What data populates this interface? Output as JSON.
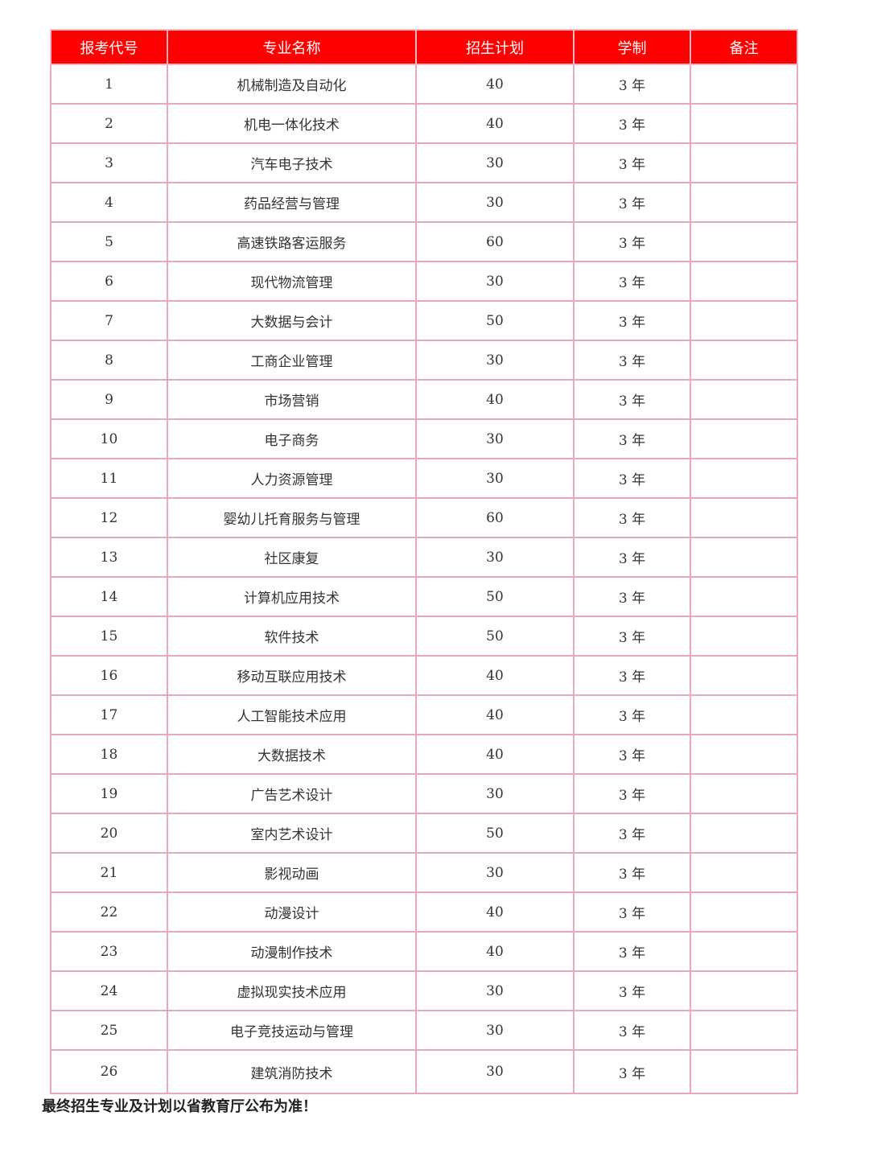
{
  "headers": [
    "报考代号",
    "专业名称",
    "招生计划",
    "学制",
    "备注"
  ],
  "rows": [
    [
      "1",
      "机械制造及自动化",
      "40",
      "3 年",
      ""
    ],
    [
      "2",
      "机电一体化技术",
      "40",
      "3 年",
      ""
    ],
    [
      "3",
      "汽车电子技术",
      "30",
      "3 年",
      ""
    ],
    [
      "4",
      "药品经营与管理",
      "30",
      "3 年",
      ""
    ],
    [
      "5",
      "高速铁路客运服务",
      "60",
      "3 年",
      ""
    ],
    [
      "6",
      "现代物流管理",
      "30",
      "3 年",
      ""
    ],
    [
      "7",
      "大数据与会计",
      "50",
      "3 年",
      ""
    ],
    [
      "8",
      "工商企业管理",
      "30",
      "3 年",
      ""
    ],
    [
      "9",
      "市场营销",
      "40",
      "3 年",
      ""
    ],
    [
      "10",
      "电子商务",
      "30",
      "3 年",
      ""
    ],
    [
      "11",
      "人力资源管理",
      "30",
      "3 年",
      ""
    ],
    [
      "12",
      "婴幼儿托育服务与管理",
      "60",
      "3 年",
      ""
    ],
    [
      "13",
      "社区康复",
      "30",
      "3 年",
      ""
    ],
    [
      "14",
      "计算机应用技术",
      "50",
      "3 年",
      ""
    ],
    [
      "15",
      "软件技术",
      "50",
      "3 年",
      ""
    ],
    [
      "16",
      "移动互联应用技术",
      "40",
      "3 年",
      ""
    ],
    [
      "17",
      "人工智能技术应用",
      "40",
      "3 年",
      ""
    ],
    [
      "18",
      "大数据技术",
      "40",
      "3 年",
      ""
    ],
    [
      "19",
      "广告艺术设计",
      "30",
      "3 年",
      ""
    ],
    [
      "20",
      "室内艺术设计",
      "50",
      "3 年",
      ""
    ],
    [
      "21",
      "影视动画",
      "30",
      "3 年",
      ""
    ],
    [
      "22",
      "动漫设计",
      "40",
      "3 年",
      ""
    ],
    [
      "23",
      "动漫制作技术",
      "40",
      "3 年",
      ""
    ],
    [
      "24",
      "虚拟现实技术应用",
      "30",
      "3 年",
      ""
    ],
    [
      "25",
      "电子竞技运动与管理",
      "30",
      "3 年",
      ""
    ],
    [
      "26",
      "建筑消防技术",
      "30",
      "3 年",
      ""
    ]
  ],
  "note": "最终招生专业及计划以省教育厅公布为准！",
  "colors": {
    "header_bg": "#fe0000",
    "header_text": "#ffffff",
    "border": "#e8aab8"
  }
}
